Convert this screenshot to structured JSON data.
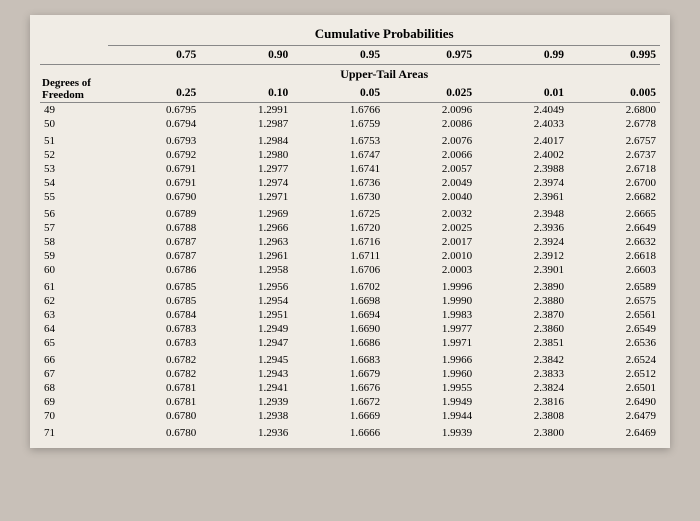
{
  "title": "Cumulative Probabilities",
  "subtitle": "Upper-Tail Areas",
  "dof_label_1": "Degrees of",
  "dof_label_2": "Freedom",
  "cum_headers": [
    "0.75",
    "0.90",
    "0.95",
    "0.975",
    "0.99",
    "0.995"
  ],
  "upper_headers": [
    "0.25",
    "0.10",
    "0.05",
    "0.025",
    "0.01",
    "0.005"
  ],
  "rows": [
    {
      "df": "49",
      "v": [
        "0.6795",
        "1.2991",
        "1.6766",
        "2.0096",
        "2.4049",
        "2.6800"
      ]
    },
    {
      "df": "50",
      "v": [
        "0.6794",
        "1.2987",
        "1.6759",
        "2.0086",
        "2.4033",
        "2.6778"
      ]
    },
    {
      "df": "51",
      "v": [
        "0.6793",
        "1.2984",
        "1.6753",
        "2.0076",
        "2.4017",
        "2.6757"
      ],
      "sp": true
    },
    {
      "df": "52",
      "v": [
        "0.6792",
        "1.2980",
        "1.6747",
        "2.0066",
        "2.4002",
        "2.6737"
      ]
    },
    {
      "df": "53",
      "v": [
        "0.6791",
        "1.2977",
        "1.6741",
        "2.0057",
        "2.3988",
        "2.6718"
      ]
    },
    {
      "df": "54",
      "v": [
        "0.6791",
        "1.2974",
        "1.6736",
        "2.0049",
        "2.3974",
        "2.6700"
      ]
    },
    {
      "df": "55",
      "v": [
        "0.6790",
        "1.2971",
        "1.6730",
        "2.0040",
        "2.3961",
        "2.6682"
      ]
    },
    {
      "df": "56",
      "v": [
        "0.6789",
        "1.2969",
        "1.6725",
        "2.0032",
        "2.3948",
        "2.6665"
      ],
      "sp": true
    },
    {
      "df": "57",
      "v": [
        "0.6788",
        "1.2966",
        "1.6720",
        "2.0025",
        "2.3936",
        "2.6649"
      ]
    },
    {
      "df": "58",
      "v": [
        "0.6787",
        "1.2963",
        "1.6716",
        "2.0017",
        "2.3924",
        "2.6632"
      ]
    },
    {
      "df": "59",
      "v": [
        "0.6787",
        "1.2961",
        "1.6711",
        "2.0010",
        "2.3912",
        "2.6618"
      ]
    },
    {
      "df": "60",
      "v": [
        "0.6786",
        "1.2958",
        "1.6706",
        "2.0003",
        "2.3901",
        "2.6603"
      ]
    },
    {
      "df": "61",
      "v": [
        "0.6785",
        "1.2956",
        "1.6702",
        "1.9996",
        "2.3890",
        "2.6589"
      ],
      "sp": true
    },
    {
      "df": "62",
      "v": [
        "0.6785",
        "1.2954",
        "1.6698",
        "1.9990",
        "2.3880",
        "2.6575"
      ]
    },
    {
      "df": "63",
      "v": [
        "0.6784",
        "1.2951",
        "1.6694",
        "1.9983",
        "2.3870",
        "2.6561"
      ]
    },
    {
      "df": "64",
      "v": [
        "0.6783",
        "1.2949",
        "1.6690",
        "1.9977",
        "2.3860",
        "2.6549"
      ]
    },
    {
      "df": "65",
      "v": [
        "0.6783",
        "1.2947",
        "1.6686",
        "1.9971",
        "2.3851",
        "2.6536"
      ]
    },
    {
      "df": "66",
      "v": [
        "0.6782",
        "1.2945",
        "1.6683",
        "1.9966",
        "2.3842",
        "2.6524"
      ],
      "sp": true
    },
    {
      "df": "67",
      "v": [
        "0.6782",
        "1.2943",
        "1.6679",
        "1.9960",
        "2.3833",
        "2.6512"
      ]
    },
    {
      "df": "68",
      "v": [
        "0.6781",
        "1.2941",
        "1.6676",
        "1.9955",
        "2.3824",
        "2.6501"
      ]
    },
    {
      "df": "69",
      "v": [
        "0.6781",
        "1.2939",
        "1.6672",
        "1.9949",
        "2.3816",
        "2.6490"
      ]
    },
    {
      "df": "70",
      "v": [
        "0.6780",
        "1.2938",
        "1.6669",
        "1.9944",
        "2.3808",
        "2.6479"
      ]
    },
    {
      "df": "71",
      "v": [
        "0.6780",
        "1.2936",
        "1.6666",
        "1.9939",
        "2.3800",
        "2.6469"
      ],
      "sp": true
    }
  ]
}
